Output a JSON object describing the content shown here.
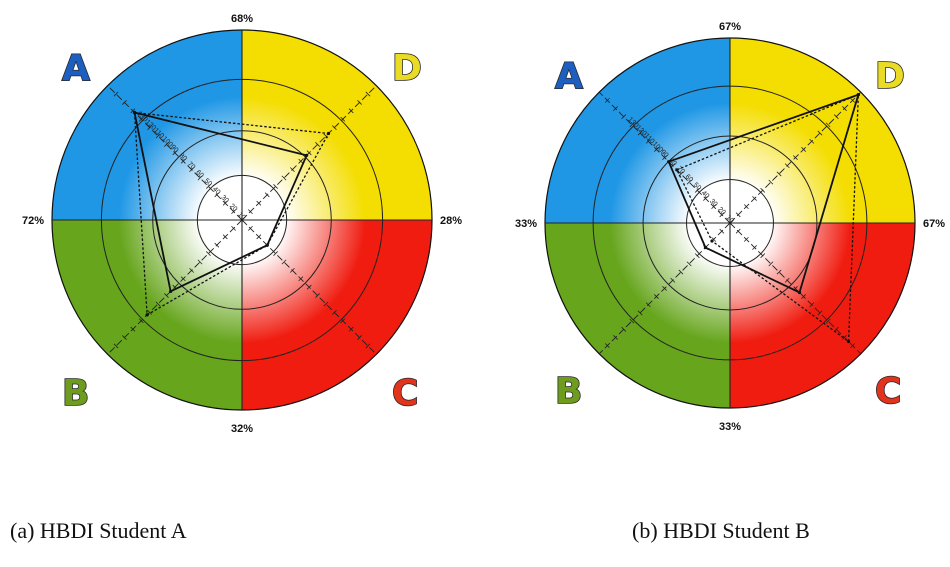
{
  "colors": {
    "A": "#1f97e5",
    "B": "#66a51c",
    "C": "#f01c10",
    "D": "#f4dd00",
    "A_letter": "#1d5fc0",
    "B_letter": "#6e9c1e",
    "C_letter": "#e2331c",
    "D_letter": "#eadc24"
  },
  "chart_data": [
    {
      "type": "radar",
      "caption": "(a) HBDI Student A",
      "quadrants": [
        "A",
        "B",
        "C",
        "D"
      ],
      "percentages": {
        "top": "68%",
        "left": "72%",
        "right": "28%",
        "bottom": "32%"
      },
      "axis_ticks": [
        "10",
        "20",
        "30",
        "40",
        "50",
        "60",
        "70",
        "80",
        "90",
        "100",
        "110",
        "120",
        "130"
      ],
      "axis_max": 160,
      "series": [
        {
          "style": "solid",
          "values": {
            "A": 128,
            "B": 85,
            "C": 30,
            "D": 77
          }
        },
        {
          "style": "dashed",
          "values": {
            "A": 128,
            "B": 113,
            "C": 30,
            "D": 103
          }
        }
      ]
    },
    {
      "type": "radar",
      "caption": "(b) HBDI Student B",
      "quadrants": [
        "A",
        "B",
        "C",
        "D"
      ],
      "percentages": {
        "top": "67%",
        "left": "33%",
        "right": "67%",
        "bottom": "33%"
      },
      "axis_ticks": [
        "10",
        "20",
        "30",
        "40",
        "50",
        "60",
        "70",
        "80",
        "90",
        "100",
        "110",
        "120",
        "130"
      ],
      "axis_max": 160,
      "series": [
        {
          "style": "solid",
          "values": {
            "A": 75,
            "B": 30,
            "C": 85,
            "D": 157
          }
        },
        {
          "style": "dashed",
          "values": {
            "A": 65,
            "B": 22,
            "C": 145,
            "D": 157
          }
        }
      ]
    }
  ]
}
